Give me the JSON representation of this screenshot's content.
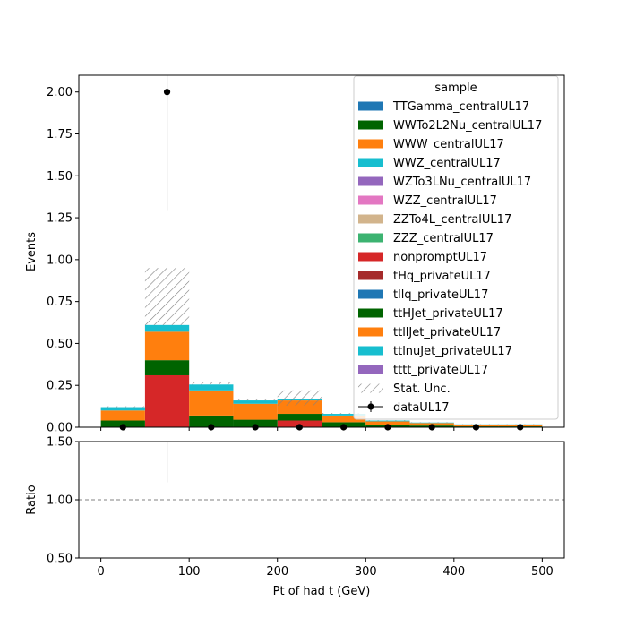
{
  "chart_data": {
    "type": "bar",
    "stacked": true,
    "xlabel": "Pt of had t (GeV)",
    "ylabel": "Events",
    "ratio_ylabel": "Ratio",
    "xlim": [
      -25,
      525
    ],
    "ylim": [
      0,
      2.1
    ],
    "ratio_ylim": [
      0.5,
      1.5
    ],
    "x_ticks": [
      0,
      100,
      200,
      300,
      400,
      500
    ],
    "y_ticks": [
      0.0,
      0.25,
      0.5,
      0.75,
      1.0,
      1.25,
      1.5,
      1.75,
      2.0
    ],
    "y_tick_labels": [
      "0.00",
      "0.25",
      "0.50",
      "0.75",
      "1.00",
      "1.25",
      "1.50",
      "1.75",
      "2.00"
    ],
    "ratio_ticks": [
      0.5,
      1.0,
      1.5
    ],
    "ratio_tick_labels": [
      "0.50",
      "1.00",
      "1.50"
    ],
    "bin_edges": [
      0,
      50,
      100,
      150,
      200,
      250,
      300,
      350,
      400,
      450,
      500
    ],
    "legend": {
      "title": "sample",
      "placement": "top-right",
      "stat_unc_label": "Stat. Unc.",
      "data_label": "dataUL17"
    },
    "series": [
      {
        "name": "TTGamma_centralUL17",
        "color": "#1f77b4",
        "values": [
          0,
          0,
          0,
          0,
          0,
          0,
          0,
          0,
          0,
          0
        ]
      },
      {
        "name": "WWTo2L2Nu_centralUL17",
        "color": "#006400",
        "values": [
          0,
          0,
          0,
          0,
          0,
          0,
          0,
          0,
          0,
          0
        ]
      },
      {
        "name": "WWW_centralUL17",
        "color": "#ff7f0e",
        "values": [
          0,
          0,
          0,
          0,
          0,
          0,
          0,
          0,
          0,
          0
        ]
      },
      {
        "name": "WWZ_centralUL17",
        "color": "#17becf",
        "values": [
          0,
          0,
          0,
          0,
          0,
          0,
          0,
          0,
          0,
          0
        ]
      },
      {
        "name": "WZTo3LNu_centralUL17",
        "color": "#9467bd",
        "values": [
          0,
          0,
          0,
          0,
          0,
          0,
          0,
          0,
          0,
          0
        ]
      },
      {
        "name": "WZZ_centralUL17",
        "color": "#e377c2",
        "values": [
          0,
          0,
          0,
          0,
          0,
          0,
          0,
          0,
          0,
          0
        ]
      },
      {
        "name": "ZZTo4L_centralUL17",
        "color": "#d2b48c",
        "values": [
          0,
          0,
          0,
          0,
          0,
          0,
          0,
          0,
          0,
          0
        ]
      },
      {
        "name": "ZZZ_centralUL17",
        "color": "#3cb371",
        "values": [
          0,
          0,
          0,
          0,
          0,
          0,
          0,
          0,
          0,
          0
        ]
      },
      {
        "name": "nonpromptUL17",
        "color": "#d62728",
        "values": [
          0,
          0.31,
          0,
          0,
          0.04,
          0,
          0,
          0,
          0,
          0
        ]
      },
      {
        "name": "tHq_privateUL17",
        "color": "#a52a2a",
        "values": [
          0,
          0,
          0,
          0,
          0,
          0,
          0,
          0,
          0,
          0
        ]
      },
      {
        "name": "tllq_privateUL17",
        "color": "#1f77b4",
        "values": [
          0,
          0,
          0,
          0,
          0,
          0,
          0,
          0,
          0,
          0
        ]
      },
      {
        "name": "ttHJet_privateUL17",
        "color": "#006400",
        "values": [
          0.04,
          0.09,
          0.07,
          0.045,
          0.04,
          0.03,
          0.015,
          0.01,
          0.005,
          0.005
        ]
      },
      {
        "name": "ttllJet_privateUL17",
        "color": "#ff7f0e",
        "values": [
          0.06,
          0.17,
          0.15,
          0.095,
          0.08,
          0.04,
          0.02,
          0.015,
          0.01,
          0.01
        ]
      },
      {
        "name": "ttlnuJet_privateUL17",
        "color": "#17becf",
        "values": [
          0.02,
          0.04,
          0.035,
          0.02,
          0.01,
          0.01,
          0.005,
          0.003,
          0.002,
          0.002
        ]
      },
      {
        "name": "tttt_privateUL17",
        "color": "#9467bd",
        "values": [
          0,
          0,
          0,
          0,
          0,
          0,
          0,
          0,
          0,
          0
        ]
      }
    ],
    "stat_unc": {
      "lower": [
        0.12,
        0.61,
        0.255,
        0.16,
        0.13,
        0.08,
        0.04,
        0.028,
        0.017,
        0.017
      ],
      "upper": [
        0.125,
        0.95,
        0.27,
        0.165,
        0.22,
        0.085,
        0.042,
        0.03,
        0.018,
        0.018
      ]
    },
    "data": {
      "x": [
        25,
        75,
        125,
        175,
        225,
        275,
        325,
        375,
        425,
        475
      ],
      "y": [
        0,
        2,
        0,
        0,
        0,
        0,
        0,
        0,
        0,
        0
      ],
      "err_low": [
        0,
        1.29,
        0,
        0,
        0,
        0,
        0,
        0,
        0,
        0
      ],
      "err_high": [
        0,
        2.64,
        0,
        0,
        0,
        0,
        0,
        0,
        0,
        0
      ]
    },
    "ratio": {
      "reference_line": 1.0,
      "error_bars": [
        {
          "x": 75,
          "low": 1.15,
          "high": 1.5
        }
      ]
    }
  }
}
